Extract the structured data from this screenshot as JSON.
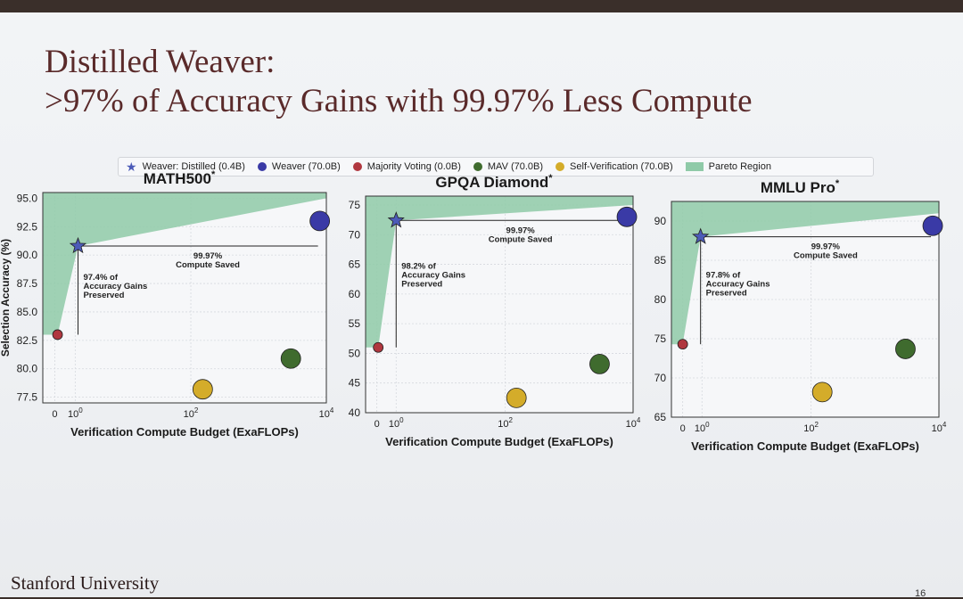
{
  "slide": {
    "title_line1": "Distilled Weaver:",
    "title_line2": ">97% of Accuracy Gains with 99.97% Less Compute",
    "footer": "Stanford University",
    "page_number": "16"
  },
  "legend": {
    "entries": [
      {
        "label": "Weaver: Distilled (0.4B)",
        "marker": "star",
        "color": "#4c5bb8"
      },
      {
        "label": "Weaver (70.0B)",
        "marker": "dot",
        "color": "#3a3aa6"
      },
      {
        "label": "Majority Voting (0.0B)",
        "marker": "dot",
        "color": "#b0373f"
      },
      {
        "label": "MAV (70.0B)",
        "marker": "dot",
        "color": "#3f6b2e"
      },
      {
        "label": "Self-Verification (70.0B)",
        "marker": "dot",
        "color": "#d4ac2a"
      },
      {
        "label": "Pareto Region",
        "marker": "rect",
        "color": "#8fcaa8"
      }
    ]
  },
  "chart_data": [
    {
      "type": "scatter",
      "title": "MATH500",
      "title_sup": "*",
      "xlabel": "Verification Compute Budget (ExaFLOPs)",
      "ylabel": "Selection Accuracy (%)",
      "x_scale": "symlog",
      "x_ticks": [
        {
          "v": 0,
          "label": "0"
        },
        {
          "v": 1,
          "label": "10",
          "sup": "0"
        },
        {
          "v": 100,
          "label": "10",
          "sup": "2"
        },
        {
          "v": 10000,
          "label": "10",
          "sup": "4"
        }
      ],
      "xlim": [
        -0.5,
        10000
      ],
      "ylim": [
        77,
        95.5
      ],
      "y_ticks": [
        77.5,
        80.0,
        82.5,
        85.0,
        87.5,
        90.0,
        92.5,
        95.0
      ],
      "y_tick_labels": [
        "77.5",
        "80.0",
        "82.5",
        "85.0",
        "87.5",
        "90.0",
        "92.5",
        "95.0"
      ],
      "points": [
        {
          "series": "Weaver: Distilled (0.4B)",
          "x": 1.2,
          "y": 90.8
        },
        {
          "series": "Weaver (70.0B)",
          "x": 8000,
          "y": 93.0
        },
        {
          "series": "Majority Voting (0.0B)",
          "x": 0.1,
          "y": 83.0
        },
        {
          "series": "MAV (70.0B)",
          "x": 3000,
          "y": 80.9
        },
        {
          "series": "Self-Verification (70.0B)",
          "x": 150,
          "y": 78.2
        }
      ],
      "pareto_polygon": [
        [
          -0.5,
          83.0
        ],
        [
          0.1,
          83.0
        ],
        [
          1.2,
          90.8
        ],
        [
          10000,
          95.0
        ],
        [
          10000,
          95.5
        ],
        [
          -0.5,
          95.5
        ]
      ],
      "annotations": {
        "compute_saved": [
          "99.97%",
          "Compute Saved"
        ],
        "accuracy_preserved": [
          "97.4% of",
          "Accuracy Gains",
          "Preserved"
        ]
      }
    },
    {
      "type": "scatter",
      "title": "GPQA Diamond",
      "title_sup": "*",
      "xlabel": "Verification Compute Budget (ExaFLOPs)",
      "ylabel": "",
      "x_scale": "symlog",
      "x_ticks": [
        {
          "v": 0,
          "label": "0"
        },
        {
          "v": 1,
          "label": "10",
          "sup": "0"
        },
        {
          "v": 100,
          "label": "10",
          "sup": "2"
        },
        {
          "v": 10000,
          "label": "10",
          "sup": "4"
        }
      ],
      "xlim": [
        -0.5,
        10000
      ],
      "ylim": [
        40,
        76.5
      ],
      "y_ticks": [
        40,
        45,
        50,
        55,
        60,
        65,
        70,
        75
      ],
      "y_tick_labels": [
        "40",
        "45",
        "50",
        "55",
        "60",
        "65",
        "70",
        "75"
      ],
      "points": [
        {
          "series": "Weaver: Distilled (0.4B)",
          "x": 1.0,
          "y": 72.4
        },
        {
          "series": "Weaver (70.0B)",
          "x": 8000,
          "y": 73.0
        },
        {
          "series": "Majority Voting (0.0B)",
          "x": 0.05,
          "y": 51.0
        },
        {
          "series": "MAV (70.0B)",
          "x": 3000,
          "y": 48.2
        },
        {
          "series": "Self-Verification (70.0B)",
          "x": 150,
          "y": 42.5
        }
      ],
      "pareto_polygon": [
        [
          -0.5,
          51.0
        ],
        [
          0.05,
          51.0
        ],
        [
          1.0,
          72.4
        ],
        [
          10000,
          75.0
        ],
        [
          10000,
          76.5
        ],
        [
          -0.5,
          76.5
        ]
      ],
      "annotations": {
        "compute_saved": [
          "99.97%",
          "Compute Saved"
        ],
        "accuracy_preserved": [
          "98.2% of",
          "Accuracy Gains",
          "Preserved"
        ]
      }
    },
    {
      "type": "scatter",
      "title": "MMLU Pro",
      "title_sup": "*",
      "xlabel": "Verification Compute Budget (ExaFLOPs)",
      "ylabel": "",
      "x_scale": "symlog",
      "x_ticks": [
        {
          "v": 0,
          "label": "0"
        },
        {
          "v": 1,
          "label": "10",
          "sup": "0"
        },
        {
          "v": 100,
          "label": "10",
          "sup": "2"
        },
        {
          "v": 10000,
          "label": "10",
          "sup": "4"
        }
      ],
      "xlim": [
        -0.5,
        10000
      ],
      "ylim": [
        65,
        92.5
      ],
      "y_ticks": [
        65,
        70,
        75,
        80,
        85,
        90
      ],
      "y_tick_labels": [
        "65",
        "70",
        "75",
        "80",
        "85",
        "90"
      ],
      "points": [
        {
          "series": "Weaver: Distilled (0.4B)",
          "x": 0.9,
          "y": 88.0
        },
        {
          "series": "Weaver (70.0B)",
          "x": 8000,
          "y": 89.4
        },
        {
          "series": "Majority Voting (0.0B)",
          "x": 0.0,
          "y": 74.3
        },
        {
          "series": "MAV (70.0B)",
          "x": 3000,
          "y": 73.7
        },
        {
          "series": "Self-Verification (70.0B)",
          "x": 150,
          "y": 68.2
        }
      ],
      "pareto_polygon": [
        [
          -0.5,
          74.3
        ],
        [
          0.0,
          74.3
        ],
        [
          0.9,
          88.0
        ],
        [
          10000,
          91.0
        ],
        [
          10000,
          92.5
        ],
        [
          -0.5,
          92.5
        ]
      ],
      "annotations": {
        "compute_saved": [
          "99.97%",
          "Compute Saved"
        ],
        "accuracy_preserved": [
          "97.8% of",
          "Accuracy Gains",
          "Preserved"
        ]
      }
    }
  ]
}
